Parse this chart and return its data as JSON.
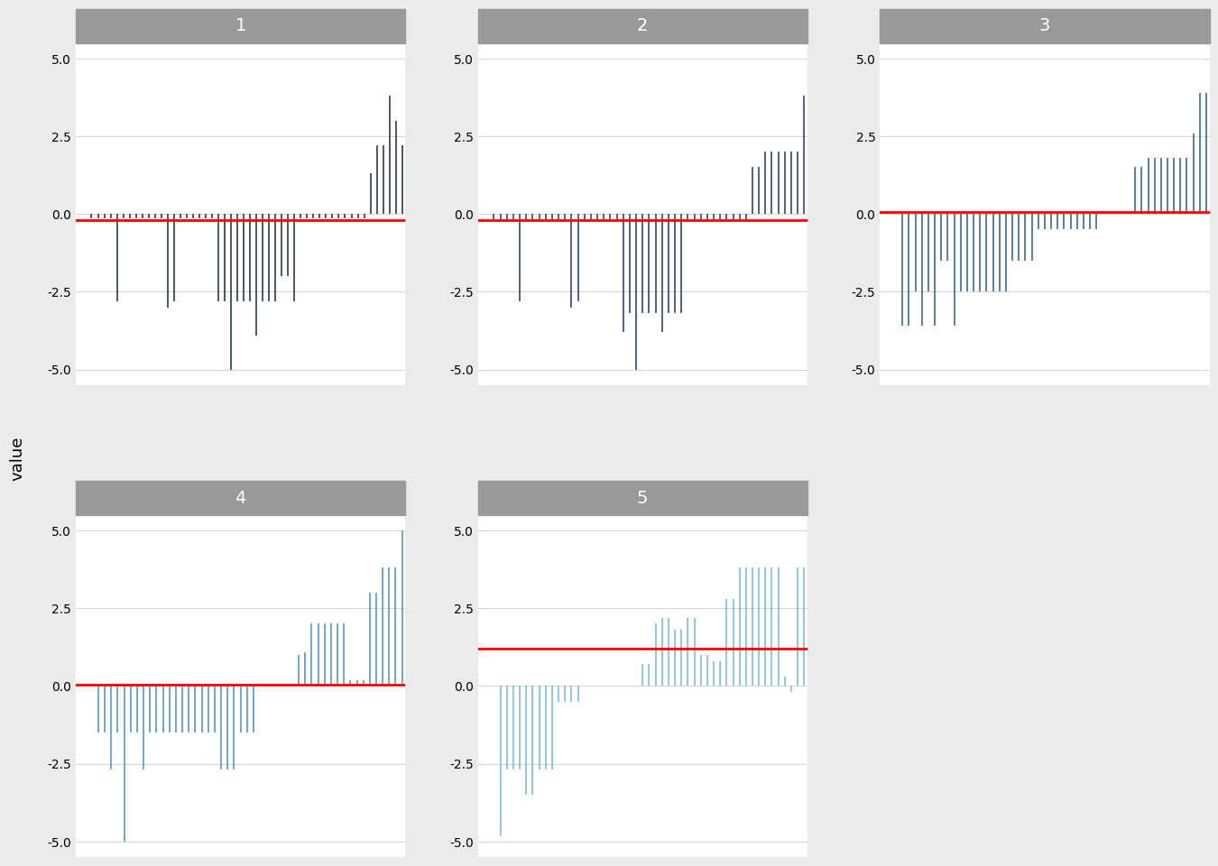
{
  "panel_titles": [
    "1",
    "2",
    "3",
    "4",
    "5"
  ],
  "panel_colors": [
    "#1b2a3b",
    "#1b3a5c",
    "#2a5f8a",
    "#4a90c4",
    "#72bcd4"
  ],
  "red_line_values": [
    -0.2,
    -0.2,
    0.05,
    0.05,
    1.2
  ],
  "ylim": [
    -5.5,
    5.5
  ],
  "yticks": [
    -5.0,
    -2.5,
    0.0,
    2.5,
    5.0
  ],
  "background_color": "#ebebeb",
  "panel_bg": "#ffffff",
  "title_bg": "#999999",
  "title_color": "#ffffff",
  "ylabel": "value",
  "panels": {
    "1": {
      "y": [
        0.0,
        0.0,
        -0.15,
        -0.15,
        -0.15,
        -0.15,
        -2.8,
        -0.15,
        -0.15,
        -0.15,
        -0.15,
        -0.15,
        -0.15,
        -0.15,
        -3.0,
        -2.8,
        -0.15,
        -0.15,
        -0.15,
        -0.15,
        -0.15,
        -0.15,
        -2.8,
        -2.8,
        -5.0,
        -2.8,
        -2.8,
        -2.8,
        -3.9,
        -2.8,
        -2.8,
        -2.8,
        -2.0,
        -2.0,
        -2.8,
        -0.15,
        -0.15,
        -0.15,
        -0.15,
        -0.15,
        -0.15,
        -0.15,
        -0.15,
        -0.15,
        -0.15,
        -0.15,
        1.3,
        2.2,
        2.2,
        3.8,
        3.0,
        2.2
      ]
    },
    "2": {
      "y": [
        0.0,
        0.0,
        -0.2,
        -0.2,
        -0.2,
        -0.2,
        -2.8,
        -0.2,
        -0.2,
        -0.2,
        -0.2,
        -0.2,
        -0.2,
        -0.2,
        -3.0,
        -2.8,
        -0.2,
        -0.2,
        -0.2,
        -0.2,
        -0.2,
        -0.2,
        -3.8,
        -3.2,
        -5.0,
        -3.2,
        -3.2,
        -3.2,
        -3.8,
        -3.2,
        -3.2,
        -3.2,
        -0.2,
        -0.2,
        -0.2,
        -0.2,
        -0.2,
        -0.2,
        -0.2,
        -0.2,
        -0.2,
        -0.2,
        1.5,
        1.5,
        2.0,
        2.0,
        2.0,
        2.0,
        2.0,
        2.0,
        3.8
      ]
    },
    "3": {
      "y": [
        0.0,
        0.0,
        0.0,
        -3.6,
        -3.6,
        -2.5,
        -3.6,
        -2.5,
        -3.6,
        -1.5,
        -1.5,
        -3.6,
        -2.5,
        -2.5,
        -2.5,
        -2.5,
        -2.5,
        -2.5,
        -2.5,
        -2.5,
        -1.5,
        -1.5,
        -1.5,
        -1.5,
        -0.5,
        -0.5,
        -0.5,
        -0.5,
        -0.5,
        -0.5,
        -0.5,
        -0.5,
        -0.5,
        -0.5,
        0.0,
        0.0,
        0.0,
        0.0,
        0.0,
        1.5,
        1.5,
        1.8,
        1.8,
        1.8,
        1.8,
        1.8,
        1.8,
        1.8,
        2.6,
        3.9,
        3.9
      ]
    },
    "4": {
      "y": [
        0.0,
        0.0,
        0.0,
        -1.5,
        -1.5,
        -2.7,
        -1.5,
        -5.0,
        -1.5,
        -1.5,
        -2.7,
        -1.5,
        -1.5,
        -1.5,
        -1.5,
        -1.5,
        -1.5,
        -1.5,
        -1.5,
        -1.5,
        -1.5,
        -1.5,
        -2.7,
        -2.7,
        -2.7,
        -1.5,
        -1.5,
        -1.5,
        0.0,
        0.0,
        0.0,
        0.0,
        0.0,
        0.0,
        1.0,
        1.1,
        2.0,
        2.0,
        2.0,
        2.0,
        2.0,
        2.0,
        0.2,
        0.2,
        0.2,
        3.0,
        3.0,
        3.8,
        3.8,
        3.8,
        5.0
      ]
    },
    "5": {
      "y": [
        0.0,
        0.0,
        0.0,
        -4.8,
        -2.7,
        -2.7,
        -2.7,
        -3.5,
        -3.5,
        -2.7,
        -2.7,
        -2.7,
        -0.5,
        -0.5,
        -0.5,
        -0.5,
        0.0,
        0.0,
        0.0,
        0.0,
        0.0,
        0.0,
        0.0,
        0.0,
        0.0,
        0.7,
        0.7,
        2.0,
        2.2,
        2.2,
        1.8,
        1.8,
        2.2,
        2.2,
        1.0,
        1.0,
        0.8,
        0.8,
        2.8,
        2.8,
        3.8,
        3.8,
        3.8,
        3.8,
        3.8,
        3.8,
        3.8,
        0.3,
        -0.2,
        3.8,
        3.8
      ]
    }
  }
}
